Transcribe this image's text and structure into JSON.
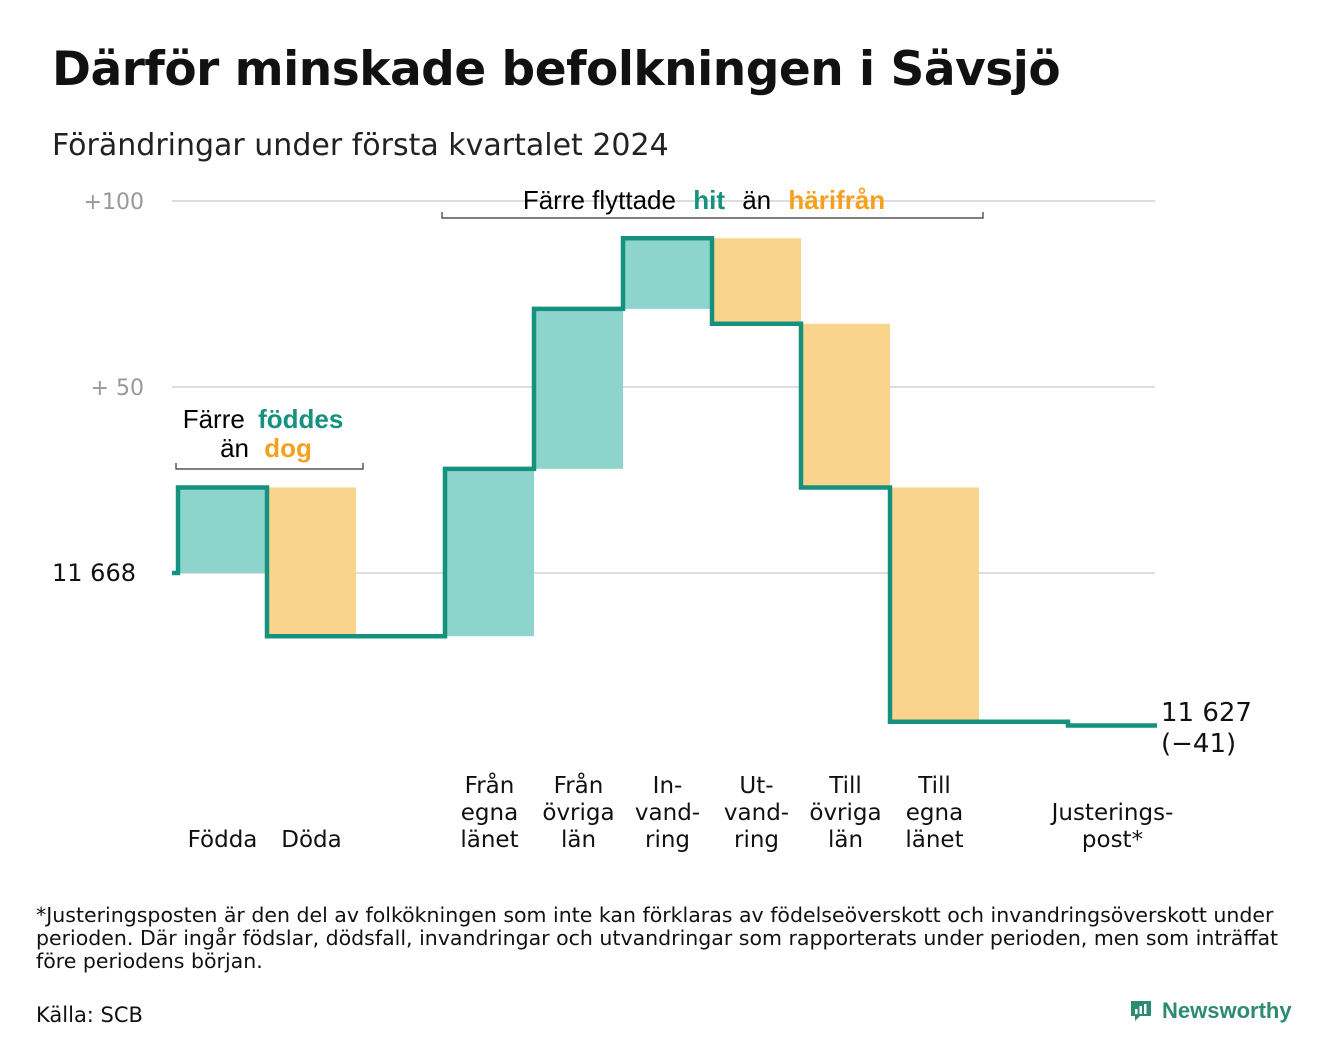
{
  "title": "Därför minskade befolkningen i Sävsjö",
  "subtitle": "Förändringar under första kvartalet 2024",
  "colors": {
    "increase_fill": "#8dd5cc",
    "decrease_fill": "#fad48c",
    "step_line": "#17917f",
    "accent_hit": "#17917f",
    "accent_harifran": "#f5a01e",
    "gridline": "#dddddd",
    "axis_text": "#999999",
    "brand": "#2c8b70"
  },
  "annotations": {
    "births": {
      "pre": "Färre",
      "highlight1": "föddes",
      "mid": "än",
      "highlight2": "dog"
    },
    "moves": {
      "pre": "Färre flyttade",
      "highlight1": "hit",
      "mid": "än",
      "highlight2": "härifrån"
    }
  },
  "start_label": "11  668",
  "end_label": [
    "11 627",
    "(−41)"
  ],
  "footnote": "*Justeringsposten är den del av folkökningen som inte kan förklaras av födelseöverskott och invandringsöverskott under perioden. Där ingår födslar, dödsfall, invandringar och utvandringar som rapporterats under perioden, men som inträffat före periodens början.",
  "source": "Källa: SCB",
  "brand": "Newsworthy",
  "chart_data": {
    "type": "waterfall",
    "baseline": 11668,
    "end_value": 11627,
    "net_change": -41,
    "y_tick_labels": [
      "+100",
      "+  50"
    ],
    "y_ticks": [
      100,
      50
    ],
    "y_range": [
      -45,
      105
    ],
    "grid": true,
    "steps": [
      {
        "label": [
          "Födda"
        ],
        "value": 23,
        "kind": "increase"
      },
      {
        "label": [
          "Döda"
        ],
        "value": -40,
        "kind": "decrease"
      },
      {
        "label": [],
        "value": 0,
        "kind": "gap"
      },
      {
        "label": [
          "Från",
          "egna",
          "länet"
        ],
        "value": 45,
        "kind": "increase"
      },
      {
        "label": [
          "Från",
          "övriga",
          "län"
        ],
        "value": 43,
        "kind": "increase"
      },
      {
        "label": [
          "In-",
          "vand-",
          "ring"
        ],
        "value": 19,
        "kind": "increase"
      },
      {
        "label": [
          "Ut-",
          "vand-",
          "ring"
        ],
        "value": -23,
        "kind": "decrease"
      },
      {
        "label": [
          "Till",
          "övriga",
          "län"
        ],
        "value": -44,
        "kind": "decrease"
      },
      {
        "label": [
          "Till",
          "egna",
          "länet"
        ],
        "value": -63,
        "kind": "decrease"
      },
      {
        "label": [],
        "value": 0,
        "kind": "gap"
      },
      {
        "label": [
          "Justerings-",
          "post*"
        ],
        "value": -1,
        "kind": "adjustment"
      }
    ]
  }
}
